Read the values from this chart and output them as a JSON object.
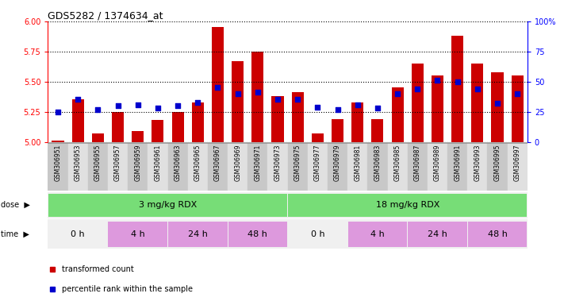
{
  "title": "GDS5282 / 1374634_at",
  "samples": [
    "GSM306951",
    "GSM306953",
    "GSM306955",
    "GSM306957",
    "GSM306959",
    "GSM306961",
    "GSM306963",
    "GSM306965",
    "GSM306967",
    "GSM306969",
    "GSM306971",
    "GSM306973",
    "GSM306975",
    "GSM306977",
    "GSM306979",
    "GSM306981",
    "GSM306983",
    "GSM306985",
    "GSM306987",
    "GSM306989",
    "GSM306991",
    "GSM306993",
    "GSM306995",
    "GSM306997"
  ],
  "transformed_count": [
    5.01,
    5.35,
    5.07,
    5.25,
    5.09,
    5.18,
    5.25,
    5.33,
    5.95,
    5.67,
    5.75,
    5.38,
    5.41,
    5.07,
    5.19,
    5.33,
    5.19,
    5.45,
    5.65,
    5.55,
    5.88,
    5.65,
    5.58,
    5.55
  ],
  "percentile_rank": [
    25,
    35,
    27,
    30,
    31,
    28,
    30,
    33,
    45,
    40,
    41,
    35,
    35,
    29,
    27,
    31,
    28,
    40,
    44,
    51,
    50,
    44,
    32,
    40
  ],
  "ylim_left": [
    5.0,
    6.0
  ],
  "ylim_right": [
    0,
    100
  ],
  "yticks_left": [
    5.0,
    5.25,
    5.5,
    5.75,
    6.0
  ],
  "yticks_right": [
    0,
    25,
    50,
    75,
    100
  ],
  "bar_color": "#cc0000",
  "dot_color": "#0000cc",
  "bar_bottom": 5.0,
  "dose_labels": [
    "3 mg/kg RDX",
    "18 mg/kg RDX"
  ],
  "dose_ranges": [
    [
      0,
      11
    ],
    [
      12,
      23
    ]
  ],
  "dose_color": "#77dd77",
  "time_labels": [
    "0 h",
    "4 h",
    "24 h",
    "48 h",
    "0 h",
    "4 h",
    "24 h",
    "48 h"
  ],
  "time_ranges": [
    [
      0,
      2
    ],
    [
      3,
      5
    ],
    [
      6,
      8
    ],
    [
      9,
      11
    ],
    [
      12,
      14
    ],
    [
      15,
      17
    ],
    [
      18,
      20
    ],
    [
      21,
      23
    ]
  ],
  "time_colors": [
    "#f0f0f0",
    "#dd99dd",
    "#dd99dd",
    "#dd99dd",
    "#f0f0f0",
    "#dd99dd",
    "#dd99dd",
    "#dd99dd"
  ],
  "legend_items": [
    "transformed count",
    "percentile rank within the sample"
  ],
  "legend_colors": [
    "#cc0000",
    "#0000cc"
  ],
  "bar_width": 0.6
}
